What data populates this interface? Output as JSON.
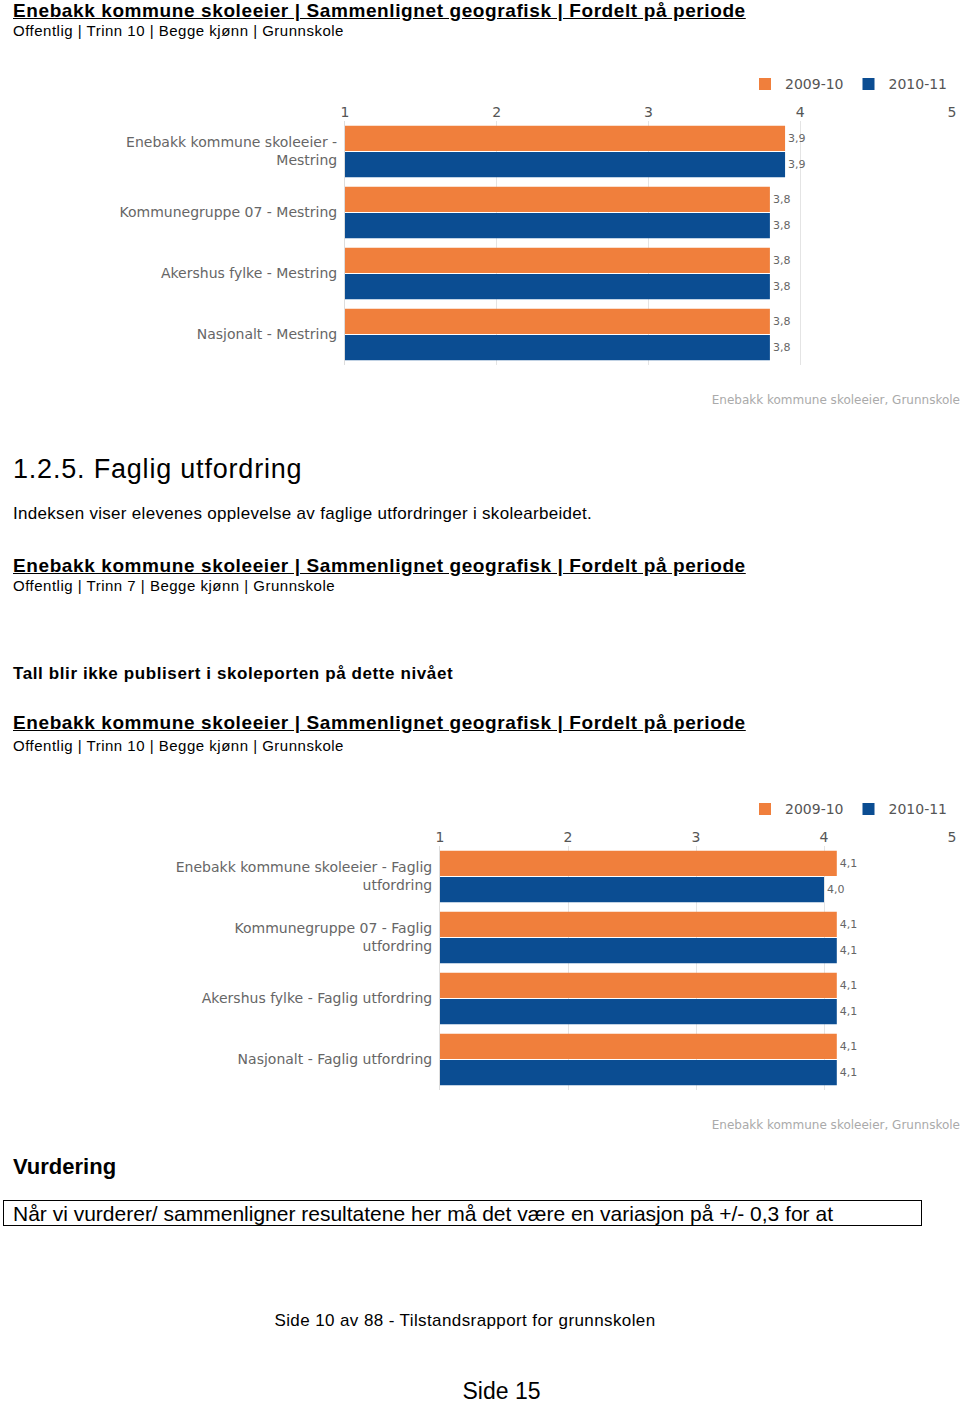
{
  "header1": {
    "title": "Enebakk kommune skoleeier | Sammenlignet geografisk | Fordelt på periode",
    "subtitle": "Offentlig | Trinn 10 | Begge kjønn | Grunnskole"
  },
  "section": {
    "heading": "1.2.5. Faglig utfordring",
    "text": "Indeksen viser elevenes opplevelse av faglige utfordringer i skolearbeidet."
  },
  "header2": {
    "title": "Enebakk kommune skoleeier | Sammenlignet geografisk | Fordelt på periode",
    "subtitle": "Offentlig | Trinn 7 | Begge kjønn | Grunnskole"
  },
  "notice": "Tall blir ikke publisert i skoleporten på dette nivået",
  "header3": {
    "title": "Enebakk kommune skoleeier | Sammenlignet geografisk | Fordelt på periode",
    "subtitle": "Offentlig | Trinn 10 | Begge kjønn | Grunnskole"
  },
  "assessment": {
    "heading": "Vurdering",
    "text": "Når vi vurderer/ sammenligner resultatene her må det være en variasjon på +/- 0,3 for at"
  },
  "footer": {
    "page_info": "Side 10 av 88 - Tilstandsrapport for grunnskolen",
    "page_number": "Side 15"
  },
  "chart_data": [
    {
      "type": "bar",
      "orientation": "horizontal",
      "categories": [
        "Enebakk kommune skoleeier - Mestring",
        "Kommunegruppe 07 - Mestring",
        "Akershus fylke - Mestring",
        "Nasjonalt - Mestring"
      ],
      "series": [
        {
          "name": "2009-10",
          "color": "#f07f3c",
          "values": [
            3.9,
            3.8,
            3.8,
            3.8
          ],
          "value_labels": [
            "3,9",
            "3,8",
            "3,8",
            "3,8"
          ]
        },
        {
          "name": "2010-11",
          "color": "#0b4d92",
          "values": [
            3.9,
            3.8,
            3.8,
            3.8
          ],
          "value_labels": [
            "3,9",
            "3,8",
            "3,8",
            "3,8"
          ]
        }
      ],
      "xlim": [
        1,
        5
      ],
      "xticks": [
        1,
        2,
        3,
        4,
        5
      ],
      "grid": true,
      "data_labels": true,
      "legend": "top right",
      "annotation": "Enebakk kommune skoleeier, Grunnskole"
    },
    {
      "type": "bar",
      "orientation": "horizontal",
      "categories": [
        "Enebakk kommune skoleeier - Faglig utfordring",
        "Kommunegruppe 07 - Faglig utfordring",
        "Akershus fylke - Faglig utfordring",
        "Nasjonalt - Faglig utfordring"
      ],
      "series": [
        {
          "name": "2009-10",
          "color": "#f07f3c",
          "values": [
            4.1,
            4.1,
            4.1,
            4.1
          ],
          "value_labels": [
            "4,1",
            "4,1",
            "4,1",
            "4,1"
          ]
        },
        {
          "name": "2010-11",
          "color": "#0b4d92",
          "values": [
            4.0,
            4.1,
            4.1,
            4.1
          ],
          "value_labels": [
            "4,0",
            "4,1",
            "4,1",
            "4,1"
          ]
        }
      ],
      "xlim": [
        1,
        5
      ],
      "xticks": [
        1,
        2,
        3,
        4,
        5
      ],
      "grid": true,
      "data_labels": true,
      "legend": "top right",
      "annotation": "Enebakk kommune skoleeier, Grunnskole"
    }
  ]
}
